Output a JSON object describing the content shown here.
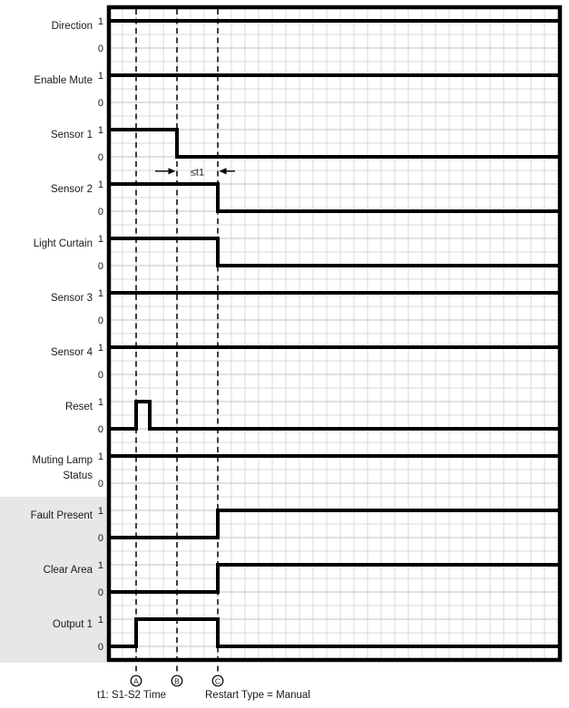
{
  "colors": {
    "background": "#ffffff",
    "highlight_region": "#e7e7e7",
    "signal_line": "#000000",
    "frame": "#000000",
    "grid": "#d9d9d9",
    "grid_level": "#c2c2c2",
    "marker_dash": "#000000",
    "text": "#1a1a1a"
  },
  "chart_data": {
    "type": "timing",
    "time_units": "grid-cells",
    "x_range": [
      0,
      33.1
    ],
    "levels": [
      "1",
      "0"
    ],
    "signals": [
      {
        "label": "Direction",
        "wave": [
          [
            0,
            1
          ],
          [
            33.1,
            1
          ]
        ]
      },
      {
        "label": "Enable Mute",
        "wave": [
          [
            0,
            1
          ],
          [
            33.1,
            1
          ]
        ]
      },
      {
        "label": "Sensor 1",
        "wave": [
          [
            0,
            1
          ],
          [
            5,
            1
          ],
          [
            5,
            0
          ],
          [
            33.1,
            0
          ]
        ]
      },
      {
        "label": "Sensor 2",
        "wave": [
          [
            0,
            1
          ],
          [
            8,
            1
          ],
          [
            8,
            0
          ],
          [
            33.1,
            0
          ]
        ]
      },
      {
        "label": "Light Curtain",
        "wave": [
          [
            0,
            1
          ],
          [
            8,
            1
          ],
          [
            8,
            0
          ],
          [
            33.1,
            0
          ]
        ]
      },
      {
        "label": "Sensor 3",
        "wave": [
          [
            0,
            1
          ],
          [
            33.1,
            1
          ]
        ]
      },
      {
        "label": "Sensor 4",
        "wave": [
          [
            0,
            1
          ],
          [
            33.1,
            1
          ]
        ]
      },
      {
        "label": "Reset",
        "wave": [
          [
            0,
            0
          ],
          [
            2,
            0
          ],
          [
            2,
            1
          ],
          [
            3,
            1
          ],
          [
            3,
            0
          ],
          [
            33.1,
            0
          ]
        ]
      },
      {
        "label": "Muting Lamp Status",
        "label_lines": [
          "Muting Lamp",
          "Status"
        ],
        "wave": [
          [
            0,
            1
          ],
          [
            33.1,
            1
          ]
        ]
      },
      {
        "label": "Fault Present",
        "highlighted": true,
        "wave": [
          [
            0,
            0
          ],
          [
            8,
            0
          ],
          [
            8,
            1
          ],
          [
            33.1,
            1
          ]
        ]
      },
      {
        "label": "Clear Area",
        "highlighted": true,
        "wave": [
          [
            0,
            0
          ],
          [
            8,
            0
          ],
          [
            8,
            1
          ],
          [
            33.1,
            1
          ]
        ]
      },
      {
        "label": "Output 1",
        "highlighted": true,
        "wave": [
          [
            0,
            0
          ],
          [
            2,
            0
          ],
          [
            2,
            1
          ],
          [
            8,
            1
          ],
          [
            8,
            0
          ],
          [
            33.1,
            0
          ]
        ]
      }
    ],
    "markers": [
      {
        "id": "A",
        "t": 2
      },
      {
        "id": "B",
        "t": 5
      },
      {
        "id": "C",
        "t": 8
      }
    ],
    "annotation": {
      "text": "≤t1",
      "from_t": 5,
      "to_t": 8,
      "above_signal": "Sensor 2"
    },
    "footnotes": [
      {
        "text": "t1: S1-S2 Time"
      },
      {
        "text": "Restart Type = Manual"
      }
    ]
  }
}
